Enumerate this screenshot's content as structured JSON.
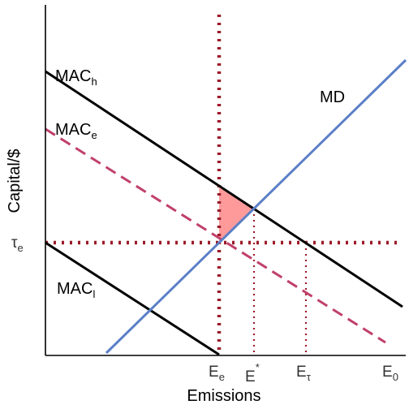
{
  "axes": {
    "x_label": "Emissions",
    "y_label": "Capital/$"
  },
  "curves": {
    "mac_h": {
      "main": "MAC",
      "sub": "h"
    },
    "mac_e": {
      "main": "MAC",
      "sub": "e"
    },
    "mac_l": {
      "main": "MAC",
      "sub": "l"
    },
    "md": {
      "main": "MD"
    }
  },
  "x_ticks": {
    "e_e": {
      "main": "E",
      "sub": "e"
    },
    "e_star": {
      "main": "E",
      "sup": "*"
    },
    "e_tau": {
      "main": "E",
      "sub": "τ"
    },
    "e_0": {
      "main": "E",
      "sub": "0"
    }
  },
  "y_ticks": {
    "tau_e": {
      "main": "τ",
      "sub": "e"
    }
  },
  "colors": {
    "axis": "#000000",
    "mac_solid": "#000000",
    "mac_dashed": "#c0406a",
    "md_line": "#5b7fc7",
    "dotted_guide": "#9b1b2a",
    "shaded_triangle": "#ff9a9a"
  }
}
